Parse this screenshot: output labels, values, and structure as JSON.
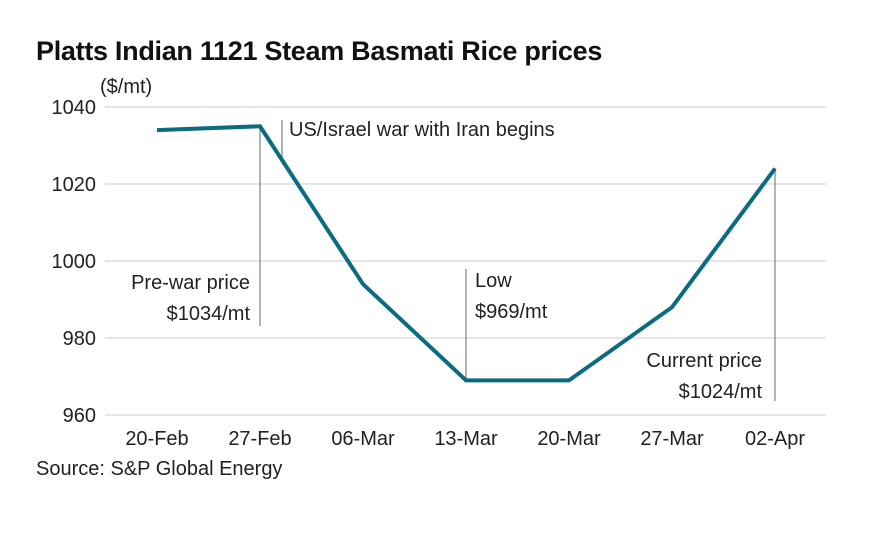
{
  "chart_data": {
    "type": "line",
    "title": "Platts Indian 1121 Steam Basmati Rice prices",
    "ylabel": "($/mt)",
    "xlabel": "",
    "source": "Source: S&P Global Energy",
    "categories": [
      "20-Feb",
      "27-Feb",
      "06-Mar",
      "13-Mar",
      "20-Mar",
      "27-Mar",
      "02-Apr"
    ],
    "series": [
      {
        "name": "Platts Indian 1121 Steam Basmati Rice",
        "values": [
          1034,
          1035,
          994,
          969,
          969,
          988,
          1024
        ],
        "color": "#0b6c80"
      }
    ],
    "ylim": [
      960,
      1040
    ],
    "yticks": [
      960,
      980,
      1000,
      1020,
      1040
    ],
    "grid": true,
    "legend": "none",
    "annotations": [
      {
        "category": "27-Feb",
        "lines": [
          "US/Israel war with Iran begins"
        ],
        "side": "right"
      },
      {
        "category": "27-Feb",
        "lines": [
          "Pre-war price",
          "$1034/mt"
        ],
        "side": "left"
      },
      {
        "category": "13-Mar",
        "lines": [
          "Low",
          "$969/mt"
        ],
        "side": "right"
      },
      {
        "category": "02-Apr",
        "lines": [
          "Current price",
          "$1024/mt"
        ],
        "side": "left"
      }
    ]
  }
}
